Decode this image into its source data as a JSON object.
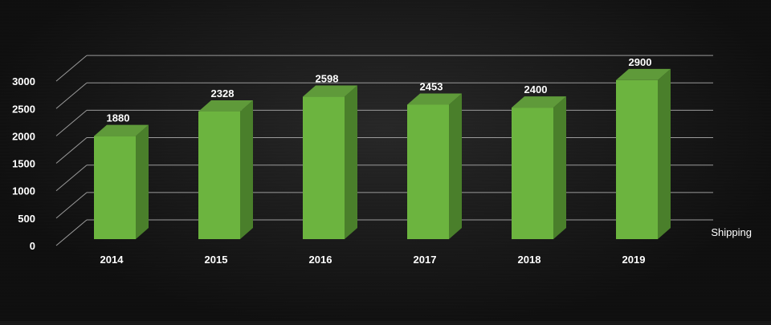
{
  "chart_data": {
    "type": "bar",
    "style": "3d-column",
    "categories": [
      "2014",
      "2015",
      "2016",
      "2017",
      "2018",
      "2019"
    ],
    "series": [
      {
        "name": "Shipping",
        "values": [
          1880,
          2328,
          2598,
          2453,
          2400,
          2900
        ]
      }
    ],
    "yticks": [
      "0",
      "500",
      "1000",
      "1500",
      "2000",
      "2500",
      "3000"
    ],
    "ylim": [
      0,
      3000
    ],
    "grid": true,
    "data_labels": true,
    "series_label_position": "right",
    "colors": {
      "bar_front": "#6cb43f",
      "bar_side": "#4a7f2b",
      "bar_top": "#5f9a3a",
      "grid": "#9a9a9a",
      "text": "#ffffff"
    }
  }
}
